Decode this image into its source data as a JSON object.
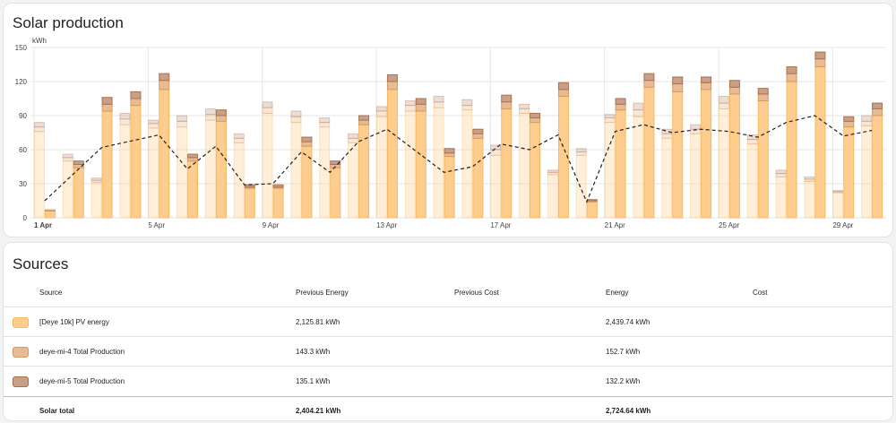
{
  "chart_card": {
    "title": "Solar production"
  },
  "sources_card": {
    "title": "Sources"
  },
  "colors": {
    "pv": "#f5b963",
    "pv_fill": "#fecd8e",
    "mi4": "#d39967",
    "mi4_fill": "#e7bb93",
    "mi5": "#a8714f",
    "mi5_fill": "#c99f88",
    "prev_alpha": 0.35,
    "avg_line": "#212121"
  },
  "chart_data": {
    "type": "bar",
    "ylabel": "kWh",
    "ylim": [
      0,
      150
    ],
    "yticks": [
      0,
      30,
      60,
      90,
      120,
      150
    ],
    "grid": true,
    "stacked": true,
    "categories": [
      "1 Apr",
      "2 Apr",
      "3 Apr",
      "4 Apr",
      "5 Apr",
      "6 Apr",
      "7 Apr",
      "8 Apr",
      "9 Apr",
      "10 Apr",
      "11 Apr",
      "12 Apr",
      "13 Apr",
      "14 Apr",
      "15 Apr",
      "16 Apr",
      "17 Apr",
      "18 Apr",
      "19 Apr",
      "20 Apr",
      "21 Apr",
      "22 Apr",
      "23 Apr",
      "24 Apr",
      "25 Apr",
      "26 Apr",
      "27 Apr",
      "28 Apr",
      "29 Apr",
      "30 Apr"
    ],
    "xtick_labels": [
      "1 Apr",
      "5 Apr",
      "9 Apr",
      "13 Apr",
      "17 Apr",
      "21 Apr",
      "25 Apr",
      "29 Apr"
    ],
    "current": [
      {
        "name": "[Deye 10k] PV energy",
        "values": [
          6,
          44,
          94,
          99,
          113,
          50,
          85,
          26,
          26,
          63,
          44,
          82,
          113,
          94,
          54,
          70,
          96,
          84,
          107,
          14,
          95,
          115,
          111,
          113,
          109,
          103,
          120,
          133,
          80,
          90
        ]
      },
      {
        "name": "deye-mi-4 Total Production",
        "values": [
          1,
          3,
          6,
          6,
          8,
          3,
          5,
          1,
          1,
          4,
          3,
          4,
          7,
          6,
          3,
          4,
          6,
          4,
          6,
          1,
          5,
          6,
          7,
          6,
          6,
          6,
          7,
          7,
          5,
          6
        ]
      },
      {
        "name": "deye-mi-5 Total Production",
        "values": [
          0,
          3,
          6,
          6,
          6,
          3,
          5,
          2,
          2,
          4,
          3,
          4,
          6,
          5,
          4,
          4,
          6,
          4,
          6,
          1,
          5,
          6,
          6,
          5,
          6,
          5,
          6,
          6,
          4,
          5
        ]
      }
    ],
    "previous": [
      {
        "name": "[Deye 10k] PV energy",
        "values": [
          76,
          50,
          31,
          82,
          79,
          80,
          86,
          66,
          92,
          84,
          80,
          66,
          89,
          94,
          97,
          95,
          55,
          92,
          38,
          55,
          84,
          89,
          70,
          74,
          96,
          65,
          36,
          32,
          22,
          81
        ]
      },
      {
        "name": "deye-mi-4 Total Production",
        "values": [
          4,
          3,
          2,
          5,
          4,
          5,
          5,
          4,
          5,
          5,
          4,
          4,
          5,
          5,
          5,
          4,
          5,
          4,
          2,
          3,
          4,
          6,
          4,
          4,
          5,
          4,
          3,
          2,
          1,
          4
        ]
      },
      {
        "name": "deye-mi-5 Total Production",
        "values": [
          4,
          3,
          2,
          5,
          3,
          5,
          5,
          4,
          5,
          5,
          4,
          4,
          4,
          4,
          5,
          5,
          4,
          4,
          2,
          3,
          3,
          6,
          4,
          4,
          6,
          4,
          3,
          2,
          1,
          5
        ]
      }
    ],
    "comparison_line": [
      15,
      null,
      62,
      null,
      73,
      43,
      63,
      29,
      30,
      58,
      40,
      67,
      78,
      null,
      40,
      45,
      65,
      60,
      73,
      14,
      76,
      82,
      75,
      78,
      76,
      71,
      84,
      90,
      72,
      77
    ]
  },
  "table": {
    "headers": {
      "source": "Source",
      "prev_energy": "Previous Energy",
      "prev_cost": "Previous Cost",
      "energy": "Energy",
      "cost": "Cost"
    },
    "rows": [
      {
        "source": "[Deye 10k] PV energy",
        "prev_energy": "2,125.81 kWh",
        "prev_cost": "",
        "energy": "2,439.74 kWh",
        "cost": ""
      },
      {
        "source": "deye-mi-4 Total Production",
        "prev_energy": "143.3 kWh",
        "prev_cost": "",
        "energy": "152.7 kWh",
        "cost": ""
      },
      {
        "source": "deye-mi-5 Total Production",
        "prev_energy": "135.1 kWh",
        "prev_cost": "",
        "energy": "132.2 kWh",
        "cost": ""
      }
    ],
    "total": {
      "source": "Solar total",
      "prev_energy": "2,404.21 kWh",
      "prev_cost": "",
      "energy": "2,724.64 kWh",
      "cost": ""
    }
  }
}
